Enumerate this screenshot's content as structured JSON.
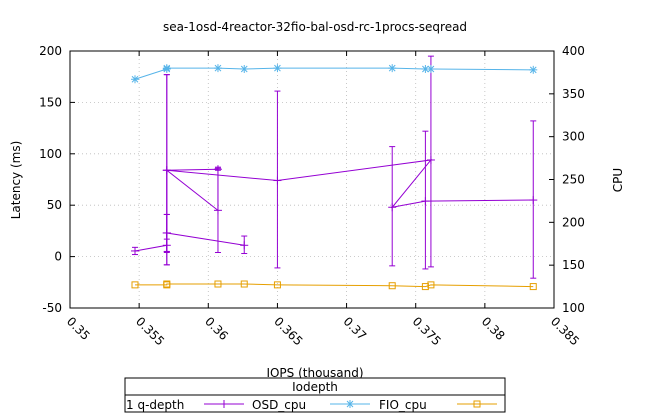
{
  "chart_data": {
    "type": "scatter",
    "title": "sea-1osd-4reactor-32fio-bal-osd-rc-1procs-seqread",
    "xlabel": "IOPS (thousand)",
    "ylabel": "Latency (ms)",
    "y2label": "CPU",
    "xlim": [
      0.35,
      0.385
    ],
    "ylim": [
      -50,
      200
    ],
    "y2lim": [
      100,
      400
    ],
    "xticks": [
      "0.35",
      "0.355",
      "0.36",
      "0.365",
      "0.37",
      "0.375",
      "0.38",
      "0.385"
    ],
    "yticks": [
      "-50",
      "0",
      "50",
      "100",
      "150",
      "200"
    ],
    "y2ticks": [
      "100",
      "150",
      "200",
      "250",
      "300",
      "350",
      "400"
    ],
    "grid": true,
    "legend": {
      "title": "Iodepth",
      "position": "bottom",
      "entries": [
        "1 q-depth",
        "OSD_cpu",
        "FIO_cpu"
      ]
    },
    "series": [
      {
        "name": "1 q-depth",
        "axis": "y",
        "color": "#9400d3",
        "marker": "plus",
        "points": [
          {
            "x": 0.3547,
            "y": 5.5,
            "ymin": 2,
            "ymax": 9
          },
          {
            "x": 0.357,
            "y": 11,
            "ymin": 4,
            "ymax": 17
          },
          {
            "x": 0.357,
            "y": 23,
            "ymin": 5,
            "ymax": 41
          },
          {
            "x": 0.3626,
            "y": 11,
            "ymin": 3,
            "ymax": 20
          },
          {
            "x": 0.357,
            "y": 23,
            "ymin": 5,
            "ymax": 41
          },
          {
            "x": 0.357,
            "y": 84,
            "ymin": -8,
            "ymax": 177
          },
          {
            "x": 0.3607,
            "y": 85,
            "ymin": 84,
            "ymax": 87
          },
          {
            "x": 0.3607,
            "y": 45,
            "ymin": 4,
            "ymax": 86
          },
          {
            "x": 0.357,
            "y": 84,
            "ymin": -8,
            "ymax": 177
          },
          {
            "x": 0.365,
            "y": 74,
            "ymin": -11,
            "ymax": 161
          },
          {
            "x": 0.3761,
            "y": 94,
            "ymin": -10,
            "ymax": 195
          },
          {
            "x": 0.3733,
            "y": 48,
            "ymin": -9,
            "ymax": 107
          },
          {
            "x": 0.3757,
            "y": 54,
            "ymin": -12,
            "ymax": 122
          },
          {
            "x": 0.3835,
            "y": 55,
            "ymin": -21,
            "ymax": 132
          }
        ]
      },
      {
        "name": "OSD_cpu",
        "axis": "y2",
        "color": "#56b4e9",
        "marker": "star",
        "points": [
          {
            "x": 0.3547,
            "y": 367
          },
          {
            "x": 0.357,
            "y": 379
          },
          {
            "x": 0.357,
            "y": 380
          },
          {
            "x": 0.3607,
            "y": 380
          },
          {
            "x": 0.3626,
            "y": 379
          },
          {
            "x": 0.365,
            "y": 380
          },
          {
            "x": 0.3733,
            "y": 380
          },
          {
            "x": 0.3757,
            "y": 379
          },
          {
            "x": 0.3761,
            "y": 379
          },
          {
            "x": 0.3835,
            "y": 378
          }
        ]
      },
      {
        "name": "FIO_cpu",
        "axis": "y2",
        "color": "#e69f00",
        "marker": "square",
        "points": [
          {
            "x": 0.3547,
            "y": 127
          },
          {
            "x": 0.357,
            "y": 127
          },
          {
            "x": 0.357,
            "y": 128
          },
          {
            "x": 0.3607,
            "y": 128
          },
          {
            "x": 0.3626,
            "y": 128
          },
          {
            "x": 0.365,
            "y": 127
          },
          {
            "x": 0.3733,
            "y": 126
          },
          {
            "x": 0.3757,
            "y": 125
          },
          {
            "x": 0.3761,
            "y": 127
          },
          {
            "x": 0.3835,
            "y": 125
          }
        ]
      }
    ]
  }
}
